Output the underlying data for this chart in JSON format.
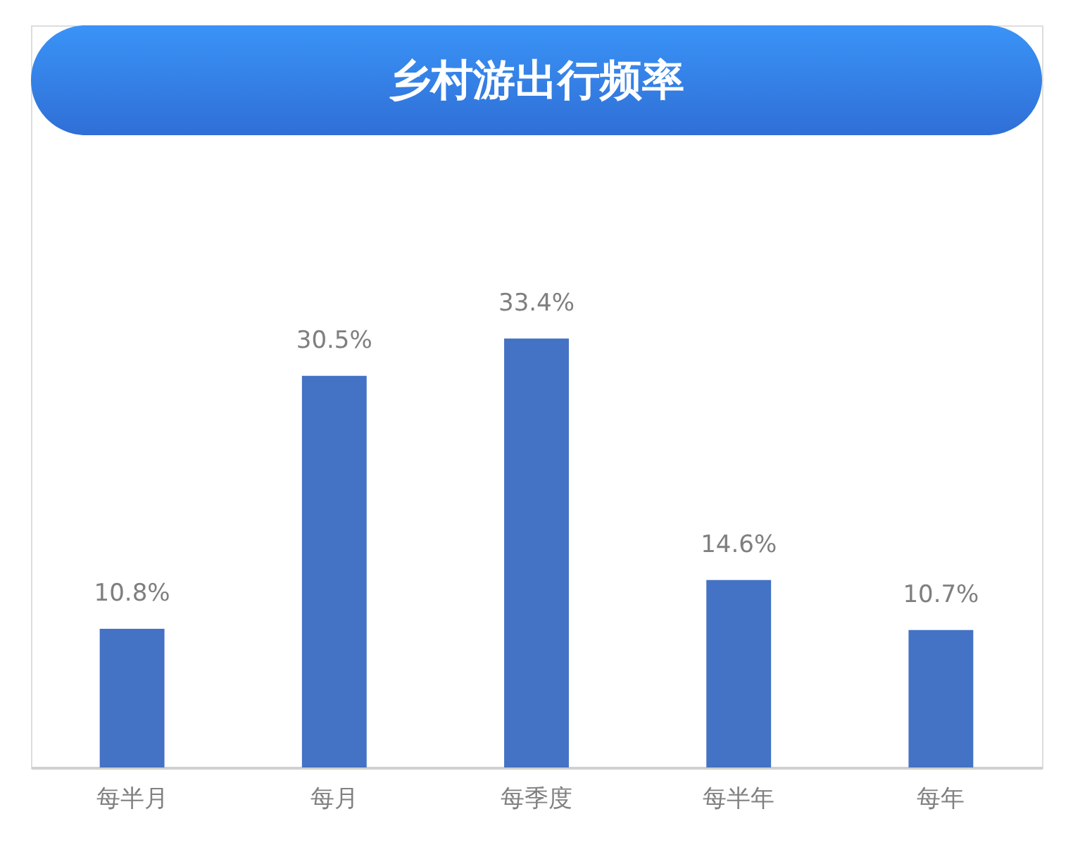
{
  "chart_data": {
    "type": "bar",
    "title": "乡村游出行频率",
    "categories": [
      "每半月",
      "每月",
      "每季度",
      "每半年",
      "每年"
    ],
    "values": [
      10.8,
      30.5,
      33.4,
      14.6,
      10.7
    ],
    "value_labels": [
      "10.8%",
      "30.5%",
      "33.4%",
      "14.6%",
      "10.7%"
    ],
    "color": "#4472c4"
  }
}
